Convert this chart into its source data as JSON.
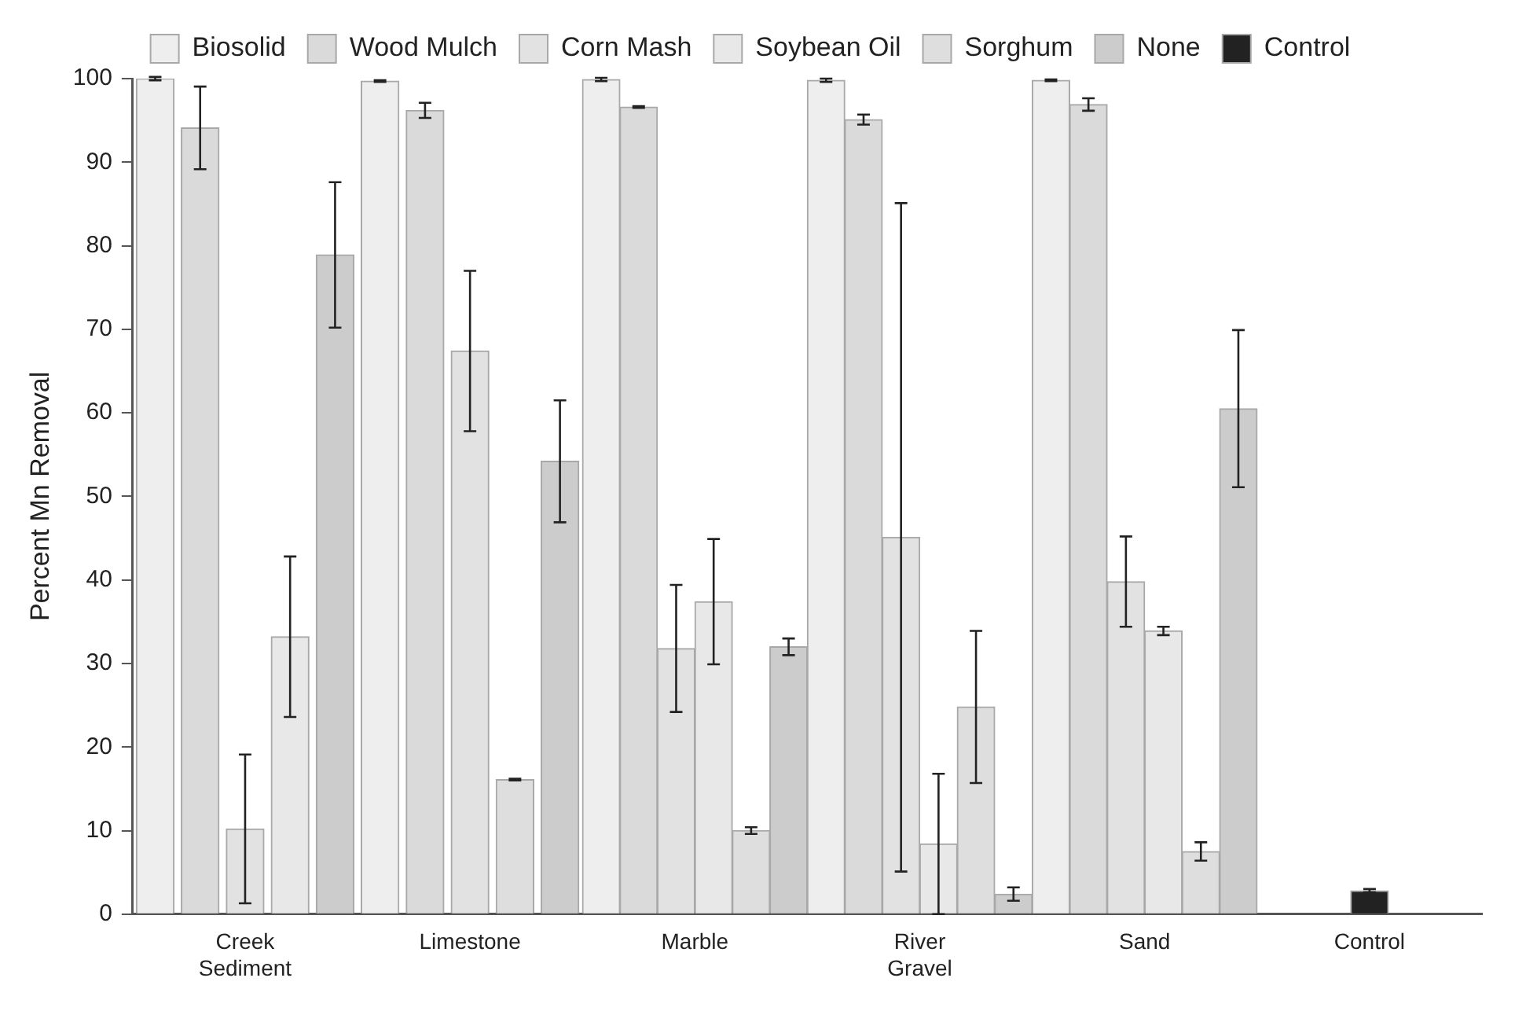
{
  "chart_data": {
    "type": "bar",
    "ylabel": "Percent Mn Removal",
    "categories": [
      "Creek Sediment",
      "Limestone",
      "Marble",
      "River Gravel",
      "Sand",
      "Control"
    ],
    "series": [
      {
        "name": "Biosolid",
        "color": "#eeeeee",
        "values": [
          100,
          99.7,
          99.9,
          99.8,
          99.8,
          null
        ],
        "errors": [
          0.2,
          0.1,
          0.2,
          0.2,
          0.1,
          null
        ]
      },
      {
        "name": "Wood Mulch",
        "color": "#dadada",
        "values": [
          94.1,
          96.2,
          96.6,
          95.1,
          96.9,
          null
        ],
        "errors": [
          4.95,
          0.9,
          0.1,
          0.6,
          0.75,
          null
        ]
      },
      {
        "name": "Corn Mash",
        "color": "#e2e2e2",
        "values": [
          10.2,
          67.4,
          31.8,
          45.1,
          39.8,
          null
        ],
        "errors": [
          8.9,
          9.6,
          7.6,
          40,
          5.4,
          null
        ]
      },
      {
        "name": "Soybean Oil",
        "color": "#e8e8e8",
        "values": [
          33.2,
          null,
          37.4,
          8.4,
          33.9,
          null
        ],
        "errors": [
          9.6,
          null,
          7.5,
          8.4,
          0.5,
          null
        ]
      },
      {
        "name": "Sorghum",
        "color": "#dedede",
        "values": [
          null,
          16.1,
          10,
          24.8,
          7.5,
          null
        ],
        "errors": [
          null,
          0.1,
          0.4,
          9.1,
          1.1,
          null
        ]
      },
      {
        "name": "None",
        "color": "#cccccc",
        "values": [
          78.9,
          54.2,
          32,
          2.4,
          60.5,
          null
        ],
        "errors": [
          8.7,
          7.3,
          1,
          0.8,
          9.4,
          null
        ]
      },
      {
        "name": "Control",
        "color": "#222222",
        "values": [
          null,
          null,
          null,
          null,
          null,
          2.8
        ],
        "errors": [
          null,
          null,
          null,
          null,
          null,
          0.2
        ]
      }
    ],
    "ylim": [
      0,
      100
    ],
    "yticks": [
      0,
      10,
      20,
      30,
      40,
      50,
      60,
      70,
      80,
      90,
      100
    ],
    "grid": false,
    "legend": "top"
  }
}
